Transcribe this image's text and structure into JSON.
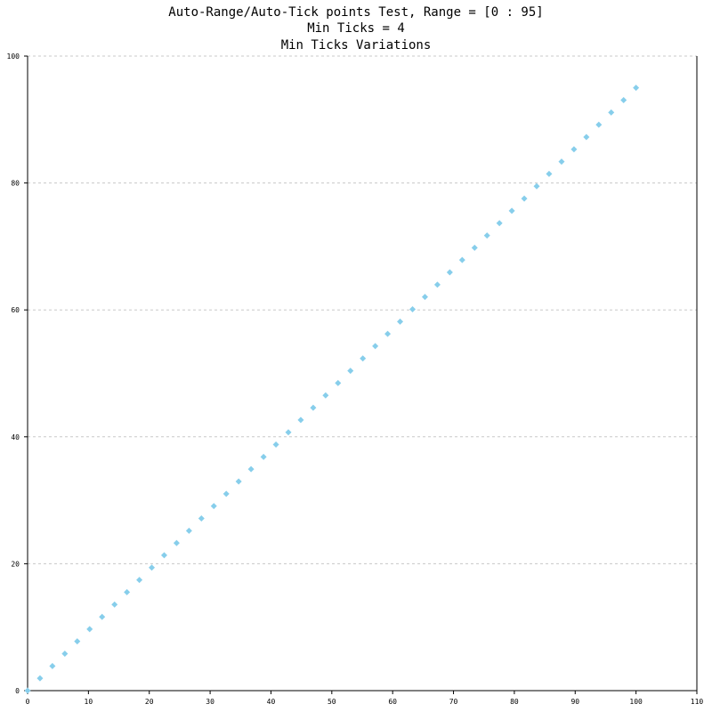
{
  "chart_data": {
    "type": "scatter",
    "title_lines": [
      "Auto-Range/Auto-Tick points Test, Range = [0 : 95]",
      "Min Ticks = 4",
      "Min Ticks Variations"
    ],
    "xlabel": "",
    "ylabel": "",
    "xlim": [
      0,
      110
    ],
    "ylim": [
      0,
      100
    ],
    "x_ticks": [
      0,
      10,
      20,
      30,
      40,
      50,
      60,
      70,
      80,
      90,
      100,
      110
    ],
    "y_ticks": [
      0,
      20,
      40,
      60,
      80,
      100
    ],
    "grid": {
      "x": false,
      "y": true
    },
    "marker": "diamond",
    "colors": {
      "marker": "#87ceeb",
      "grid": "#c8c8c8",
      "axis": "#000000"
    },
    "series": [
      {
        "x": [
          0,
          2.04,
          4.08,
          6.12,
          8.16,
          10.2,
          12.24,
          14.29,
          16.33,
          18.37,
          20.41,
          22.45,
          24.49,
          26.53,
          28.57,
          30.61,
          32.65,
          34.69,
          36.73,
          38.78,
          40.82,
          42.86,
          44.9,
          46.94,
          48.98,
          51.02,
          53.06,
          55.1,
          57.14,
          59.18,
          61.22,
          63.27,
          65.31,
          67.35,
          69.39,
          71.43,
          73.47,
          75.51,
          77.55,
          79.59,
          81.63,
          83.67,
          85.71,
          87.76,
          89.8,
          91.84,
          93.88,
          95.92,
          97.96,
          100
        ],
        "y": [
          0,
          1.94,
          3.88,
          5.82,
          7.76,
          9.69,
          11.63,
          13.57,
          15.51,
          17.45,
          19.39,
          21.33,
          23.27,
          25.2,
          27.14,
          29.08,
          31.02,
          32.96,
          34.9,
          36.84,
          38.78,
          40.71,
          42.65,
          44.59,
          46.53,
          48.47,
          50.41,
          52.35,
          54.29,
          56.22,
          58.16,
          60.1,
          62.04,
          63.98,
          65.92,
          67.86,
          69.8,
          71.73,
          73.67,
          75.61,
          77.55,
          79.49,
          81.43,
          83.37,
          85.31,
          87.24,
          89.18,
          91.12,
          93.06,
          95
        ]
      }
    ]
  }
}
